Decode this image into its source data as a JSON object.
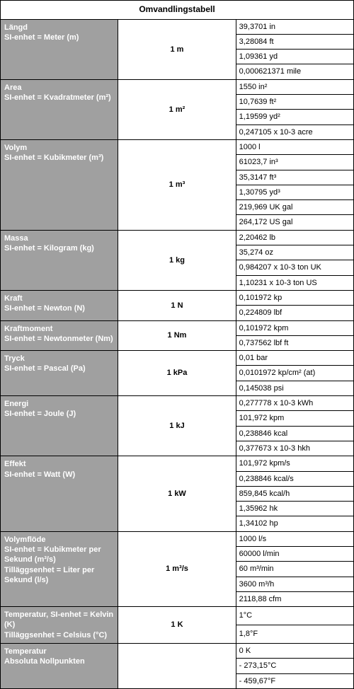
{
  "title": "Omvandlingstabell",
  "colors": {
    "label_bg": "#a0a0a0",
    "label_fg": "#ffffff",
    "border": "#000000",
    "value_bg": "#ffffff"
  },
  "sections": [
    {
      "label_line1": "Längd",
      "label_line2": "SI-enhet = Meter (m)",
      "unit": "1 m",
      "values": [
        "39,3701 in",
        "3,28084 ft",
        "1,09361 yd",
        "0,000621371 mile"
      ]
    },
    {
      "label_line1": "Area",
      "label_line2": "SI-enhet = Kvadratmeter (m²)",
      "unit": "1 m²",
      "values": [
        "1550 in²",
        "10,7639 ft²",
        "1,19599 yd²",
        "0,247105 x 10-3 acre"
      ]
    },
    {
      "label_line1": "Volym",
      "label_line2": "SI-enhet = Kubikmeter (m³)",
      "unit": "1 m³",
      "values": [
        "1000 l",
        "61023,7 in³",
        "35,3147 ft³",
        "1,30795 yd³",
        "219,969 UK gal",
        "264,172 US gal"
      ]
    },
    {
      "label_line1": "Massa",
      "label_line2": "SI-enhet = Kilogram (kg)",
      "unit": "1 kg",
      "values": [
        "2,20462 lb",
        "35,274 oz",
        "0,984207 x 10-3 ton UK",
        "1,10231 x 10-3 ton US"
      ]
    },
    {
      "label_line1": "Kraft",
      "label_line2": "SI-enhet = Newton (N)",
      "unit": "1 N",
      "values": [
        "0,101972 kp",
        "0,224809 lbf"
      ]
    },
    {
      "label_line1": "Kraftmoment",
      "label_line2": "SI-enhet = Newtonmeter (Nm)",
      "unit": "1 Nm",
      "values": [
        "0,101972 kpm",
        "0,737562 lbf ft"
      ]
    },
    {
      "label_line1": "Tryck",
      "label_line2": "SI-enhet = Pascal (Pa)",
      "unit": "1 kPa",
      "values": [
        "0,01 bar",
        "0,0101972 kp/cm² (at)",
        "0,145038 psi"
      ]
    },
    {
      "label_line1": "Energi",
      "label_line2": "SI-enhet = Joule (J)",
      "unit": "1 kJ",
      "values": [
        "0,277778 x 10-3 kWh",
        "101,972 kpm",
        "0,238846 kcal",
        "0,377673 x 10-3 hkh"
      ]
    },
    {
      "label_line1": "Effekt",
      "label_line2": "SI-enhet = Watt (W)",
      "unit": "1 kW",
      "values": [
        "101,972 kpm/s",
        "0,238846 kcal/s",
        "859,845 kcal/h",
        "1,35962 hk",
        "1,34102 hp"
      ]
    },
    {
      "label_line1": "Volymflöde",
      "label_line2": "SI-enhet = Kubikmeter per Sekund (m³/s)",
      "label_line3": "Tilläggsenhet = Liter per Sekund (l/s)",
      "unit": "1 m³/s",
      "values": [
        "1000 l/s",
        "60000 l/min",
        "60 m³/min",
        "3600 m³/h",
        "2118,88 cfm"
      ]
    },
    {
      "label_line1": "Temperatur, SI-enhet = Kelvin (K)",
      "label_line2": "Tilläggsenhet = Celsius (°C)",
      "unit": "1 K",
      "values": [
        "1°C",
        "1,8°F"
      ]
    },
    {
      "label_line1": "Temperatur",
      "label_line2": "Absoluta Nollpunkten",
      "unit": "",
      "values": [
        "0 K",
        "- 273,15°C",
        "- 459,67°F"
      ]
    }
  ]
}
